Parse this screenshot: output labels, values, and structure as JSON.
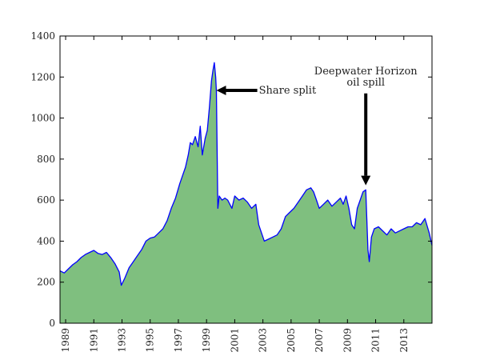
{
  "chart_data": {
    "type": "area",
    "title": "",
    "xlabel": "",
    "ylabel": "",
    "xlim": [
      1988.6,
      2015.0
    ],
    "ylim": [
      0,
      1400
    ],
    "yticks": [
      0,
      200,
      400,
      600,
      800,
      1000,
      1200,
      1400
    ],
    "xticks": [
      1989,
      1991,
      1993,
      1995,
      1997,
      1999,
      2001,
      2003,
      2005,
      2007,
      2009,
      2011,
      2013
    ],
    "xtick_labels": [
      "1989",
      "1991",
      "1993",
      "1995",
      "1997",
      "1999",
      "2001",
      "2003",
      "2005",
      "2007",
      "2009",
      "2011",
      "2013"
    ],
    "grid": false,
    "fill_color": "#7fbf7f",
    "line_color": "#0000ff",
    "series": [
      {
        "x": [
          1988.6,
          1988.9,
          1989.2,
          1989.5,
          1989.8,
          1990.1,
          1990.4,
          1990.7,
          1991.0,
          1991.3,
          1991.6,
          1991.9,
          1992.2,
          1992.5,
          1992.8,
          1992.95,
          1993.2,
          1993.5,
          1993.8,
          1994.1,
          1994.4,
          1994.7,
          1995.0,
          1995.3,
          1995.6,
          1995.9,
          1996.2,
          1996.5,
          1996.8,
          1997.1,
          1997.3,
          1997.5,
          1997.7,
          1997.85,
          1998.0,
          1998.2,
          1998.4,
          1998.55,
          1998.7,
          1998.9,
          1999.05,
          1999.2,
          1999.35,
          1999.45,
          1999.55,
          1999.65,
          1999.7,
          1999.8,
          1999.9,
          2000.1,
          2000.3,
          2000.5,
          2000.8,
          2001.0,
          2001.3,
          2001.6,
          2001.9,
          2002.2,
          2002.5,
          2002.7,
          2002.9,
          2003.1,
          2003.4,
          2003.7,
          2004.0,
          2004.3,
          2004.6,
          2004.9,
          2005.2,
          2005.5,
          2005.8,
          2006.1,
          2006.4,
          2006.6,
          2006.8,
          2007.0,
          2007.3,
          2007.6,
          2007.9,
          2008.2,
          2008.5,
          2008.7,
          2008.9,
          2009.1,
          2009.3,
          2009.5,
          2009.7,
          2009.9,
          2010.1,
          2010.3,
          2010.45,
          2010.55,
          2010.7,
          2010.9,
          2011.2,
          2011.5,
          2011.8,
          2012.1,
          2012.4,
          2012.7,
          2013.0,
          2013.3,
          2013.6,
          2013.9,
          2014.2,
          2014.5,
          2014.8,
          2015.0
        ],
        "y": [
          255,
          245,
          265,
          285,
          300,
          320,
          335,
          345,
          355,
          340,
          335,
          345,
          320,
          290,
          250,
          185,
          220,
          270,
          300,
          330,
          360,
          400,
          415,
          420,
          440,
          460,
          500,
          560,
          610,
          680,
          720,
          760,
          820,
          880,
          870,
          910,
          860,
          960,
          820,
          900,
          940,
          1050,
          1180,
          1230,
          1270,
          1200,
          1130,
          560,
          620,
          600,
          610,
          600,
          560,
          620,
          600,
          610,
          590,
          560,
          580,
          480,
          440,
          400,
          410,
          420,
          430,
          460,
          520,
          540,
          560,
          590,
          620,
          650,
          660,
          640,
          600,
          560,
          580,
          600,
          570,
          590,
          610,
          580,
          620,
          560,
          480,
          460,
          560,
          600,
          640,
          650,
          360,
          300,
          420,
          460,
          470,
          450,
          430,
          460,
          440,
          450,
          460,
          470,
          470,
          490,
          480,
          510,
          440,
          380
        ]
      }
    ],
    "annotations": [
      {
        "text": "Share split",
        "arrow_tip": [
          1999.7,
          1135
        ],
        "arrow_tail": [
          2002.6,
          1135
        ]
      },
      {
        "text_lines": [
          "Deepwater Horizon",
          "oil spill"
        ],
        "arrow_tip": [
          2010.3,
          672
        ],
        "arrow_tail": [
          2010.3,
          1120
        ]
      }
    ]
  }
}
